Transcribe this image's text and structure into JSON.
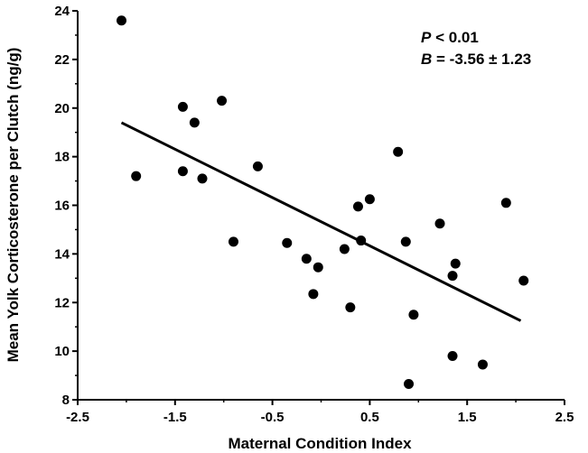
{
  "chart_data": {
    "type": "scatter",
    "title": "",
    "xlabel": "Maternal Condition Index",
    "ylabel": "Mean Yolk Corticosterone per Clutch (ng/g)",
    "xlim": [
      -2.5,
      2.5
    ],
    "ylim": [
      8,
      24
    ],
    "x_ticks": [
      -2.5,
      -1.5,
      -0.5,
      0.5,
      1.5,
      2.5
    ],
    "x_tick_labels": [
      "-2.5",
      "-1.5",
      "-0.5",
      "0.5",
      "1.5",
      "2.5"
    ],
    "y_ticks": [
      8,
      10,
      12,
      14,
      16,
      18,
      20,
      22,
      24
    ],
    "y_tick_labels": [
      "8",
      "10",
      "12",
      "14",
      "16",
      "18",
      "20",
      "22",
      "24"
    ],
    "grid": false,
    "legend": "none",
    "point_color": "#000000",
    "line_color": "#000000",
    "points": [
      {
        "x": -2.05,
        "y": 23.6
      },
      {
        "x": -1.9,
        "y": 17.2
      },
      {
        "x": -1.42,
        "y": 20.05
      },
      {
        "x": -1.42,
        "y": 17.4
      },
      {
        "x": -1.3,
        "y": 19.4
      },
      {
        "x": -1.22,
        "y": 17.1
      },
      {
        "x": -1.02,
        "y": 20.3
      },
      {
        "x": -0.9,
        "y": 14.5
      },
      {
        "x": -0.65,
        "y": 17.6
      },
      {
        "x": -0.35,
        "y": 14.45
      },
      {
        "x": -0.15,
        "y": 13.8
      },
      {
        "x": -0.08,
        "y": 12.35
      },
      {
        "x": -0.03,
        "y": 13.45
      },
      {
        "x": 0.24,
        "y": 14.2
      },
      {
        "x": 0.3,
        "y": 11.8
      },
      {
        "x": 0.38,
        "y": 15.95
      },
      {
        "x": 0.41,
        "y": 14.55
      },
      {
        "x": 0.5,
        "y": 16.25
      },
      {
        "x": 0.79,
        "y": 18.2
      },
      {
        "x": 0.87,
        "y": 14.5
      },
      {
        "x": 0.9,
        "y": 8.65
      },
      {
        "x": 0.95,
        "y": 11.5
      },
      {
        "x": 1.22,
        "y": 15.25
      },
      {
        "x": 1.35,
        "y": 13.1
      },
      {
        "x": 1.38,
        "y": 13.6
      },
      {
        "x": 1.35,
        "y": 9.8
      },
      {
        "x": 1.66,
        "y": 9.45
      },
      {
        "x": 1.9,
        "y": 16.1
      },
      {
        "x": 2.08,
        "y": 12.9
      }
    ],
    "fit_line": {
      "x": [
        -2.05,
        2.05
      ],
      "y": [
        19.4,
        11.25
      ]
    },
    "annotations": {
      "p_symbol": "P",
      "p_value": " < 0.01",
      "b_symbol": "B",
      "b_value": " = -3.56 ± 1.23"
    }
  }
}
